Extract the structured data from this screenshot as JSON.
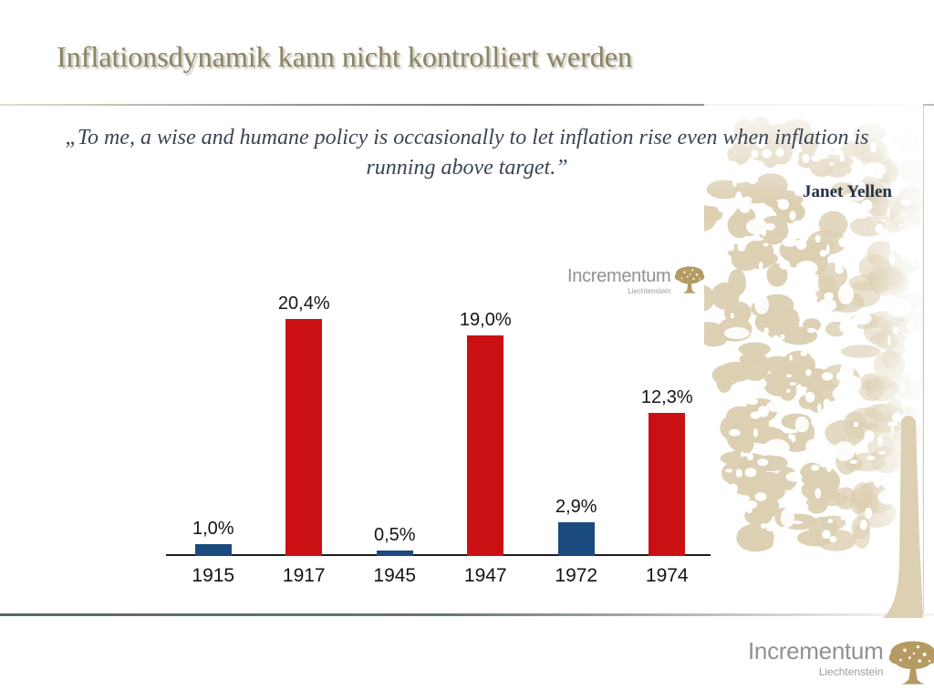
{
  "slide_title": "Inflationsdynamik kann nicht kontrolliert werden",
  "quote": {
    "text": "„To me, a wise and humane policy is occasionally to let inflation rise even when inflation is running above target.”",
    "attribution": "Janet Yellen"
  },
  "chart_data": {
    "type": "bar",
    "categories": [
      "1915",
      "1917",
      "1945",
      "1947",
      "1972",
      "1974"
    ],
    "values": [
      1.0,
      20.4,
      0.5,
      19.0,
      2.9,
      12.3
    ],
    "value_labels": [
      "1,0%",
      "20,4%",
      "0,5%",
      "19,0%",
      "2,9%",
      "12,3%"
    ],
    "bar_colors": [
      "#1a4a7e",
      "#cb1013",
      "#1a4a7e",
      "#cb1013",
      "#1a4a7e",
      "#cb1013"
    ],
    "title": "",
    "xlabel": "",
    "ylabel": "",
    "ylim": [
      0,
      22
    ],
    "grid": false,
    "legend": false,
    "decimal_style": "comma",
    "axis_line_color": "#1c1c1c"
  },
  "chart_logo": {
    "name": "Incrementum",
    "location": "Liechtenstein"
  },
  "footer_logo": {
    "name": "Incrementum",
    "location": "Liechtenstein"
  },
  "colors": {
    "title_text": "#8b8364",
    "quote_text": "#3a4553",
    "attribution_text": "#233048",
    "bar_blue": "#1a4a7e",
    "bar_red": "#cb1013",
    "logo_text_gray": "#8f9294",
    "logo_tree_tan": "#b59b63",
    "watermark_beige": "#dccfb2"
  }
}
